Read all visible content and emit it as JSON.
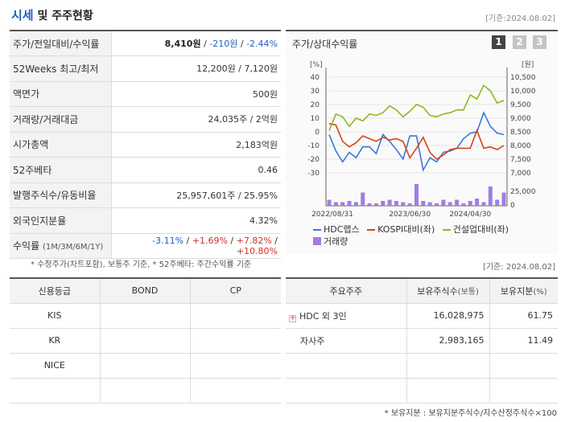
{
  "header": {
    "title_part1": "시세",
    "title_part2": " 및 주주현황",
    "base_date": "[기준:2024.08.02]"
  },
  "stats": {
    "price_label": "주가/전일대비/수익률",
    "price": "8,410원",
    "change": "-210원",
    "change_pct": "-2.44%",
    "w52_label": "52Weeks 최고/최저",
    "w52_value": "12,200원 / 7,120원",
    "par_label": "액면가",
    "par_value": "500원",
    "volume_label": "거래량/거래대금",
    "volume_value": "24,035주 / 2억원",
    "mcap_label": "시가총액",
    "mcap_value": "2,183억원",
    "beta_label": "52주베타",
    "beta_value": "0.46",
    "shares_label": "발행주식수/유동비율",
    "shares_value": "25,957,601주 / 25.95%",
    "foreign_label": "외국인지분율",
    "foreign_value": "4.32%",
    "return_label": "수익률",
    "return_sub": "(1M/3M/6M/1Y)",
    "return_1m": "-3.11%",
    "return_3m": "+1.69%",
    "return_6m": "+7.82%",
    "return_1y": "+10.80%",
    "sep": " / "
  },
  "note_left": "* 수정주가(차트포함), 보통주 기준, * 52주베타: 주간수익률 기준",
  "chart_panel": {
    "title": "주가/상대수익률",
    "pages": [
      "1",
      "2",
      "3"
    ]
  },
  "chart_data": {
    "type": "line",
    "left_unit": "[%]",
    "right_unit": "[원]",
    "left_ticks": [
      "40",
      "30",
      "20",
      "10",
      "0",
      "-10",
      "-20",
      "-30"
    ],
    "right_ticks": [
      "10,500",
      "10,000",
      "9,500",
      "9,000",
      "8,500",
      "8,000",
      "7,500",
      "7,000"
    ],
    "volume_ticks": [
      "25,000",
      "0"
    ],
    "x_labels": [
      "2022/08/31",
      "2023/06/30",
      "2024/04/30"
    ],
    "ylim_left": [
      -30,
      40
    ],
    "ylim_right": [
      7000,
      10500
    ],
    "series": [
      {
        "name": "HDC랩스",
        "color": "#3b78d8",
        "values": [
          -2,
          -14,
          -22,
          -15,
          -19,
          -11,
          -11,
          -16,
          -2,
          -7,
          -13,
          -20,
          -3,
          -3,
          -28,
          -19,
          -22,
          -15,
          -14,
          -12,
          -5,
          -1,
          0,
          14,
          4,
          -1,
          -2
        ]
      },
      {
        "name": "KOSPI대비(좌)",
        "color": "#d2451e",
        "values": [
          6,
          5,
          -7,
          -11,
          -8,
          -3,
          -5,
          -7,
          -4,
          -6,
          -5,
          -7,
          -19,
          -12,
          -4,
          -15,
          -20,
          -17,
          -13,
          -12,
          -12,
          -12,
          1,
          -12,
          -11,
          -13,
          -10
        ]
      },
      {
        "name": "건설업대비(좌)",
        "color": "#8cb91e",
        "values": [
          1,
          13,
          11,
          4,
          10,
          8,
          13,
          12,
          14,
          19,
          16,
          11,
          15,
          20,
          18,
          12,
          11,
          13,
          14,
          16,
          16,
          27,
          24,
          34,
          30,
          21,
          23
        ]
      }
    ],
    "volume": {
      "name": "거래량",
      "color": "#a07de2",
      "values": [
        5,
        3,
        3,
        4,
        3,
        11,
        2,
        2,
        4,
        5,
        4,
        3,
        2,
        18,
        4,
        3,
        2,
        5,
        3,
        5,
        2,
        4,
        6,
        3,
        16,
        5,
        11
      ]
    }
  },
  "base_date_mid": "[기준: 2024.08.02]",
  "credit": {
    "headers": [
      "신용등급",
      "BOND",
      "CP"
    ],
    "rows": [
      [
        "KIS",
        "",
        ""
      ],
      [
        "KR",
        "",
        ""
      ],
      [
        "NICE",
        "",
        ""
      ],
      [
        "",
        "",
        ""
      ]
    ]
  },
  "holders": {
    "headers": {
      "name": "주요주주",
      "shares": "보유주식수",
      "shares_sub": "(보통)",
      "ratio": "보유지분",
      "ratio_sub": "(%)"
    },
    "rows": [
      {
        "name": "HDC 외 3인",
        "shares": "16,028,975",
        "ratio": "61.75",
        "expandable": true
      },
      {
        "name": "자사주",
        "shares": "2,983,165",
        "ratio": "11.49",
        "expandable": false
      },
      {
        "name": "",
        "shares": "",
        "ratio": "",
        "expandable": false
      },
      {
        "name": "",
        "shares": "",
        "ratio": "",
        "expandable": false
      }
    ],
    "note": "* 보유지분 : 보유지분주식수/지수산정주식수×100"
  }
}
